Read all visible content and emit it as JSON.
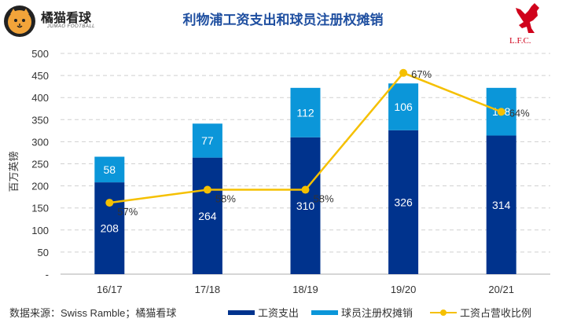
{
  "header": {
    "logo_text": "橘猫看球",
    "logo_subtext": "JUMAO FOOTBALL",
    "title": "利物浦工资支出和球员注册权摊销",
    "club_logo_text": "L.F.C."
  },
  "footer": {
    "source": "数据来源：Swiss Ramble；橘猫看球"
  },
  "colors": {
    "wages": "#00338d",
    "amortisation": "#0b96d9",
    "ratio": "#f5c000",
    "title": "#1f4fa0"
  },
  "chart_data": {
    "type": "bar",
    "stacked": true,
    "title": "利物浦工资支出和球员注册权摊销",
    "ylabel": "百万英镑",
    "ylim": [
      0,
      500
    ],
    "y_ticks": [
      "-",
      "50",
      "100",
      "150",
      "200",
      "250",
      "300",
      "350",
      "400",
      "450",
      "500"
    ],
    "grid": true,
    "legend": "bottom",
    "categories": [
      "16/17",
      "17/18",
      "18/19",
      "19/20",
      "20/21"
    ],
    "series": [
      {
        "name": "工资支出",
        "type": "bar",
        "values": [
          208,
          264,
          310,
          326,
          314
        ]
      },
      {
        "name": "球员注册权摊销",
        "type": "bar",
        "values": [
          58,
          77,
          112,
          106,
          108
        ]
      },
      {
        "name": "工资占营收比例",
        "type": "line",
        "axis": "secondary",
        "unit": "%",
        "values": [
          57,
          58,
          58,
          67,
          64
        ]
      }
    ],
    "y2lim": [
      51.5,
      68.5
    ]
  }
}
